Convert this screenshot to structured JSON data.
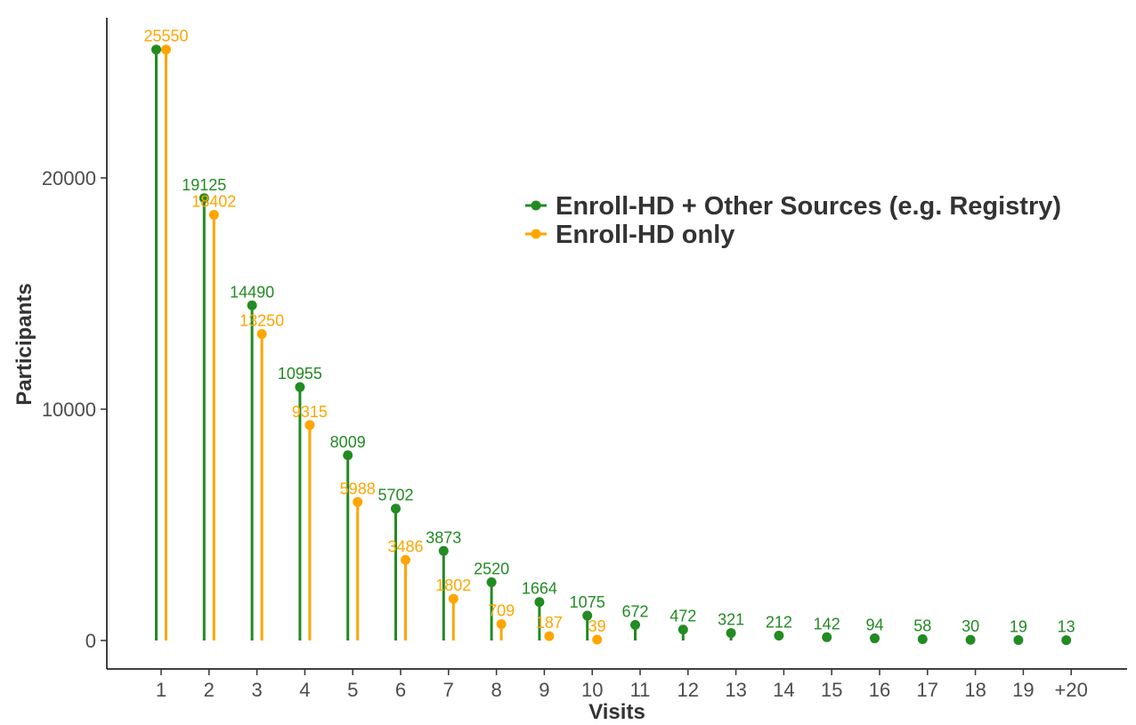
{
  "chart_data": {
    "type": "lollipop",
    "categories": [
      "1",
      "2",
      "3",
      "4",
      "5",
      "6",
      "7",
      "8",
      "9",
      "10",
      "11",
      "12",
      "13",
      "14",
      "15",
      "16",
      "17",
      "18",
      "19",
      "+20"
    ],
    "series": [
      {
        "name": "Enroll-HD + Other Sources (e.g. Registry)",
        "color": "#228b22",
        "values": [
          25550,
          19125,
          14490,
          10955,
          8009,
          5702,
          3873,
          2520,
          1664,
          1075,
          672,
          472,
          321,
          212,
          142,
          94,
          58,
          30,
          19,
          13
        ],
        "labels": [
          "",
          "19125",
          "14490",
          "10955",
          "8009",
          "5702",
          "3873",
          "2520",
          "1664",
          "1075",
          "672",
          "472",
          "321",
          "212",
          "142",
          "94",
          "58",
          "30",
          "19",
          "13"
        ]
      },
      {
        "name": "Enroll-HD only",
        "color": "#ffa500",
        "values": [
          25550,
          18402,
          13250,
          9315,
          5988,
          3486,
          1802,
          709,
          187,
          39,
          null,
          null,
          null,
          null,
          null,
          null,
          null,
          null,
          null,
          null
        ],
        "labels": [
          "25550",
          "18402",
          "13250",
          "9315",
          "5988",
          "3486",
          "1802",
          "709",
          "187",
          "39",
          "",
          "",
          "",
          "",
          "",
          "",
          "",
          "",
          "",
          ""
        ]
      }
    ],
    "xlabel": "Visits",
    "ylabel": "Participants",
    "yticks": [
      "0",
      "10000",
      "20000"
    ],
    "ylim": [
      -1200,
      27000
    ],
    "grid": false,
    "legend_position": "top-right"
  }
}
